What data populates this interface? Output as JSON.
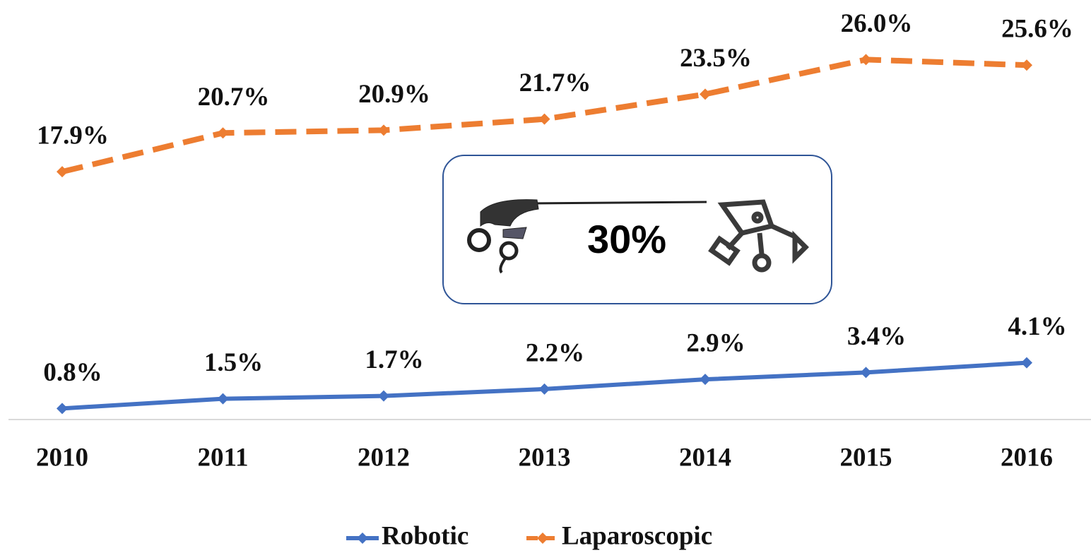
{
  "chart_data": {
    "type": "line",
    "categories": [
      "2010",
      "2011",
      "2012",
      "2013",
      "2014",
      "2015",
      "2016"
    ],
    "series": [
      {
        "name": "Robotic",
        "color": "#4472c4",
        "values": [
          0.8,
          1.5,
          1.7,
          2.2,
          2.9,
          3.4,
          4.1
        ],
        "value_labels": [
          "0.8%",
          "1.5%",
          "1.7%",
          "2.2%",
          "2.9%",
          "3.4%",
          "4.1%"
        ]
      },
      {
        "name": "Laparoscopic",
        "color": "#ed7d31",
        "dashed": true,
        "values": [
          17.9,
          20.7,
          20.9,
          21.7,
          23.5,
          26.0,
          25.6
        ],
        "value_labels": [
          "17.9%",
          "20.7%",
          "20.9%",
          "21.7%",
          "23.5%",
          "26.0%",
          "25.6%"
        ]
      }
    ],
    "ylim": [
      0,
      30
    ],
    "annotation": "30%",
    "legend": "bottom"
  }
}
